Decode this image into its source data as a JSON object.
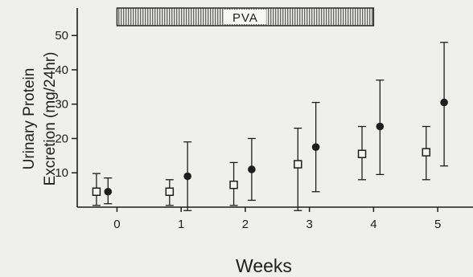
{
  "chart_data": {
    "type": "scatter",
    "title": "",
    "xlabel": "Weeks",
    "ylabel_line1": "Urinary Protein",
    "ylabel_line2": "Excretion (mg/24hr)",
    "x_ticks": [
      0,
      1,
      2,
      3,
      4,
      5
    ],
    "x_tick_labels": [
      "0",
      "1",
      "2",
      "3",
      "4",
      "5"
    ],
    "y_ticks": [
      10,
      20,
      30,
      40,
      50
    ],
    "y_tick_labels": [
      "10",
      "20",
      "30",
      "40",
      "50"
    ],
    "xlim": [
      -0.62,
      5.55
    ],
    "ylim": [
      0,
      58
    ],
    "grid": false,
    "treatment_band": {
      "label": "PVA",
      "start_week": 0,
      "end_week": 4
    },
    "series": [
      {
        "marker": "open-square",
        "points": [
          {
            "x": -0.32,
            "y": 4.5,
            "low": 0.5,
            "high": 9.8
          },
          {
            "x": 0.82,
            "y": 4.5,
            "low": 0.5,
            "high": 8.0
          },
          {
            "x": 1.82,
            "y": 6.5,
            "low": 0.5,
            "high": 13.0
          },
          {
            "x": 2.82,
            "y": 12.5,
            "low": -1.0,
            "high": 23.0
          },
          {
            "x": 3.82,
            "y": 15.5,
            "low": 8.0,
            "high": 23.5
          },
          {
            "x": 4.82,
            "y": 16.0,
            "low": 8.0,
            "high": 23.5
          }
        ]
      },
      {
        "marker": "filled-circle",
        "points": [
          {
            "x": -0.14,
            "y": 4.5,
            "low": 1.0,
            "high": 8.5
          },
          {
            "x": 1.1,
            "y": 9.0,
            "low": -1.0,
            "high": 19.0
          },
          {
            "x": 2.1,
            "y": 11.0,
            "low": 2.0,
            "high": 20.0
          },
          {
            "x": 3.1,
            "y": 17.5,
            "low": 4.5,
            "high": 30.5
          },
          {
            "x": 4.1,
            "y": 23.5,
            "low": 9.5,
            "high": 37.0
          },
          {
            "x": 5.1,
            "y": 30.5,
            "low": 12.0,
            "high": 48.0
          }
        ]
      }
    ]
  }
}
